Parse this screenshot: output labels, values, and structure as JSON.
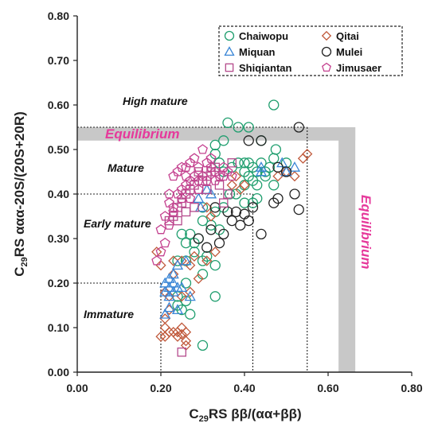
{
  "chart_data": {
    "type": "scatter",
    "title": "",
    "xlabel": {
      "prefix": "C",
      "sub": "29",
      "rest": "RS ββ/(αα+ββ)"
    },
    "ylabel": {
      "prefix": "C",
      "sub": "29",
      "rest": "RS ααα-20S/(20S+20R)"
    },
    "xlim": [
      0,
      0.8
    ],
    "ylim": [
      0,
      0.8
    ],
    "x_ticks": [
      "0.00",
      "0.20",
      "0.40",
      "0.60",
      "0.80"
    ],
    "y_ticks": [
      "0.00",
      "0.10",
      "0.20",
      "0.30",
      "0.40",
      "0.50",
      "0.60",
      "0.70",
      "0.80"
    ],
    "zones": {
      "high_mature": "High mature",
      "mature": "Mature",
      "early_mature": "Early mature",
      "immature": "Immature",
      "equilibrium_h": "Equilibrium",
      "equilibrium_v": "Equilibrium"
    },
    "legend": {
      "placement": "top-right",
      "entries": [
        {
          "name": "Chaiwopu",
          "marker": "circle",
          "color": "#1f9e6e"
        },
        {
          "name": "Qitai",
          "marker": "diamond",
          "color": "#c0583a"
        },
        {
          "name": "Miquan",
          "marker": "triangle",
          "color": "#3a86d6"
        },
        {
          "name": "Mulei",
          "marker": "circle",
          "color": "#222222"
        },
        {
          "name": "Shiqiantan",
          "marker": "square",
          "color": "#b54a8c"
        },
        {
          "name": "Jimusaer",
          "marker": "pentagon",
          "color": "#c4418f"
        }
      ]
    },
    "series": [
      {
        "name": "Chaiwopu",
        "marker": "circle",
        "color": "#1f9e6e",
        "points": [
          [
            0.47,
            0.6
          ],
          [
            0.36,
            0.56
          ],
          [
            0.385,
            0.55
          ],
          [
            0.41,
            0.55
          ],
          [
            0.44,
            0.52
          ],
          [
            0.475,
            0.5
          ],
          [
            0.33,
            0.51
          ],
          [
            0.35,
            0.52
          ],
          [
            0.4,
            0.47
          ],
          [
            0.42,
            0.46
          ],
          [
            0.43,
            0.45
          ],
          [
            0.44,
            0.47
          ],
          [
            0.45,
            0.45
          ],
          [
            0.46,
            0.46
          ],
          [
            0.4,
            0.45
          ],
          [
            0.41,
            0.44
          ],
          [
            0.42,
            0.43
          ],
          [
            0.43,
            0.42
          ],
          [
            0.4,
            0.42
          ],
          [
            0.41,
            0.47
          ],
          [
            0.385,
            0.47
          ],
          [
            0.37,
            0.46
          ],
          [
            0.35,
            0.45
          ],
          [
            0.34,
            0.47
          ],
          [
            0.33,
            0.49
          ],
          [
            0.5,
            0.47
          ],
          [
            0.47,
            0.48
          ],
          [
            0.43,
            0.39
          ],
          [
            0.42,
            0.38
          ],
          [
            0.4,
            0.38
          ],
          [
            0.35,
            0.37
          ],
          [
            0.33,
            0.36
          ],
          [
            0.3,
            0.37
          ],
          [
            0.32,
            0.33
          ],
          [
            0.34,
            0.32
          ],
          [
            0.3,
            0.34
          ],
          [
            0.29,
            0.3
          ],
          [
            0.28,
            0.29
          ],
          [
            0.27,
            0.31
          ],
          [
            0.26,
            0.29
          ],
          [
            0.25,
            0.31
          ],
          [
            0.28,
            0.27
          ],
          [
            0.26,
            0.25
          ],
          [
            0.24,
            0.25
          ],
          [
            0.3,
            0.25
          ],
          [
            0.31,
            0.26
          ],
          [
            0.33,
            0.24
          ],
          [
            0.3,
            0.22
          ],
          [
            0.26,
            0.2
          ],
          [
            0.24,
            0.17
          ],
          [
            0.33,
            0.17
          ],
          [
            0.26,
            0.16
          ],
          [
            0.27,
            0.13
          ],
          [
            0.25,
            0.14
          ],
          [
            0.24,
            0.15
          ],
          [
            0.3,
            0.06
          ],
          [
            0.45,
            0.44
          ],
          [
            0.47,
            0.42
          ],
          [
            0.38,
            0.4
          ],
          [
            0.365,
            0.4
          ]
        ]
      },
      {
        "name": "Qitai",
        "marker": "diamond",
        "color": "#c0583a",
        "points": [
          [
            0.55,
            0.49
          ],
          [
            0.54,
            0.48
          ],
          [
            0.52,
            0.44
          ],
          [
            0.5,
            0.45
          ],
          [
            0.48,
            0.44
          ],
          [
            0.38,
            0.44
          ],
          [
            0.37,
            0.42
          ],
          [
            0.4,
            0.42
          ],
          [
            0.39,
            0.41
          ],
          [
            0.31,
            0.37
          ],
          [
            0.32,
            0.35
          ],
          [
            0.33,
            0.27
          ],
          [
            0.31,
            0.25
          ],
          [
            0.28,
            0.26
          ],
          [
            0.27,
            0.24
          ],
          [
            0.25,
            0.25
          ],
          [
            0.23,
            0.25
          ],
          [
            0.2,
            0.24
          ],
          [
            0.23,
            0.22
          ],
          [
            0.29,
            0.21
          ],
          [
            0.27,
            0.18
          ],
          [
            0.25,
            0.17
          ],
          [
            0.22,
            0.17
          ],
          [
            0.19,
            0.27
          ],
          [
            0.21,
            0.18
          ],
          [
            0.22,
            0.14
          ],
          [
            0.21,
            0.12
          ],
          [
            0.21,
            0.1
          ],
          [
            0.22,
            0.09
          ],
          [
            0.23,
            0.09
          ],
          [
            0.25,
            0.1
          ],
          [
            0.26,
            0.09
          ],
          [
            0.24,
            0.08
          ],
          [
            0.21,
            0.08
          ],
          [
            0.2,
            0.08
          ],
          [
            0.26,
            0.07
          ],
          [
            0.26,
            0.06
          ],
          [
            0.24,
            0.09
          ],
          [
            0.25,
            0.085
          ]
        ]
      },
      {
        "name": "Miquan",
        "marker": "triangle",
        "color": "#3a86d6",
        "points": [
          [
            0.52,
            0.46
          ],
          [
            0.5,
            0.45
          ],
          [
            0.49,
            0.47
          ],
          [
            0.44,
            0.46
          ],
          [
            0.44,
            0.45
          ],
          [
            0.29,
            0.39
          ],
          [
            0.295,
            0.37
          ],
          [
            0.31,
            0.41
          ],
          [
            0.24,
            0.24
          ],
          [
            0.26,
            0.25
          ],
          [
            0.23,
            0.22
          ],
          [
            0.22,
            0.21
          ],
          [
            0.23,
            0.2
          ],
          [
            0.21,
            0.2
          ],
          [
            0.22,
            0.19
          ],
          [
            0.23,
            0.18
          ],
          [
            0.24,
            0.19
          ],
          [
            0.21,
            0.18
          ],
          [
            0.25,
            0.19
          ],
          [
            0.22,
            0.17
          ],
          [
            0.27,
            0.17
          ],
          [
            0.24,
            0.14
          ],
          [
            0.21,
            0.13
          ],
          [
            0.22,
            0.145
          ],
          [
            0.32,
            0.4
          ]
        ]
      },
      {
        "name": "Mulei",
        "marker": "circle",
        "color": "#222222",
        "points": [
          [
            0.53,
            0.55
          ],
          [
            0.44,
            0.52
          ],
          [
            0.41,
            0.52
          ],
          [
            0.48,
            0.46
          ],
          [
            0.5,
            0.45
          ],
          [
            0.52,
            0.4
          ],
          [
            0.48,
            0.39
          ],
          [
            0.47,
            0.38
          ],
          [
            0.53,
            0.365
          ],
          [
            0.42,
            0.37
          ],
          [
            0.4,
            0.355
          ],
          [
            0.38,
            0.36
          ],
          [
            0.36,
            0.36
          ],
          [
            0.37,
            0.34
          ],
          [
            0.39,
            0.33
          ],
          [
            0.41,
            0.34
          ],
          [
            0.35,
            0.31
          ],
          [
            0.44,
            0.31
          ],
          [
            0.32,
            0.32
          ],
          [
            0.31,
            0.28
          ],
          [
            0.34,
            0.29
          ],
          [
            0.29,
            0.3
          ],
          [
            0.33,
            0.37
          ]
        ]
      },
      {
        "name": "Shiqiantan",
        "marker": "square",
        "color": "#b54a8c",
        "points": [
          [
            0.37,
            0.47
          ],
          [
            0.33,
            0.46
          ],
          [
            0.32,
            0.45
          ],
          [
            0.31,
            0.44
          ],
          [
            0.3,
            0.43
          ],
          [
            0.28,
            0.42
          ],
          [
            0.27,
            0.41
          ],
          [
            0.26,
            0.4
          ],
          [
            0.25,
            0.38
          ],
          [
            0.24,
            0.37
          ],
          [
            0.23,
            0.35
          ],
          [
            0.22,
            0.34
          ],
          [
            0.24,
            0.34
          ],
          [
            0.26,
            0.36
          ],
          [
            0.28,
            0.37
          ],
          [
            0.29,
            0.45
          ],
          [
            0.34,
            0.42
          ],
          [
            0.36,
            0.4
          ],
          [
            0.31,
            0.41
          ],
          [
            0.25,
            0.045
          ],
          [
            0.35,
            0.38
          ]
        ]
      },
      {
        "name": "Jimusaer",
        "marker": "pentagon",
        "color": "#c4418f",
        "points": [
          [
            0.3,
            0.5
          ],
          [
            0.28,
            0.48
          ],
          [
            0.27,
            0.47
          ],
          [
            0.25,
            0.46
          ],
          [
            0.24,
            0.45
          ],
          [
            0.23,
            0.44
          ],
          [
            0.26,
            0.44
          ],
          [
            0.29,
            0.46
          ],
          [
            0.31,
            0.47
          ],
          [
            0.32,
            0.46
          ],
          [
            0.33,
            0.45
          ],
          [
            0.34,
            0.44
          ],
          [
            0.35,
            0.46
          ],
          [
            0.36,
            0.45
          ],
          [
            0.37,
            0.44
          ],
          [
            0.3,
            0.44
          ],
          [
            0.29,
            0.43
          ],
          [
            0.28,
            0.44
          ],
          [
            0.27,
            0.43
          ],
          [
            0.26,
            0.42
          ],
          [
            0.25,
            0.41
          ],
          [
            0.24,
            0.4
          ],
          [
            0.22,
            0.4
          ],
          [
            0.22,
            0.38
          ],
          [
            0.23,
            0.36
          ],
          [
            0.21,
            0.35
          ],
          [
            0.22,
            0.33
          ],
          [
            0.2,
            0.32
          ],
          [
            0.21,
            0.29
          ],
          [
            0.2,
            0.27
          ],
          [
            0.19,
            0.25
          ],
          [
            0.23,
            0.37
          ],
          [
            0.25,
            0.39
          ],
          [
            0.27,
            0.39
          ],
          [
            0.29,
            0.41
          ],
          [
            0.31,
            0.43
          ],
          [
            0.33,
            0.43
          ],
          [
            0.35,
            0.44
          ],
          [
            0.26,
            0.46
          ],
          [
            0.32,
            0.48
          ]
        ]
      }
    ]
  }
}
